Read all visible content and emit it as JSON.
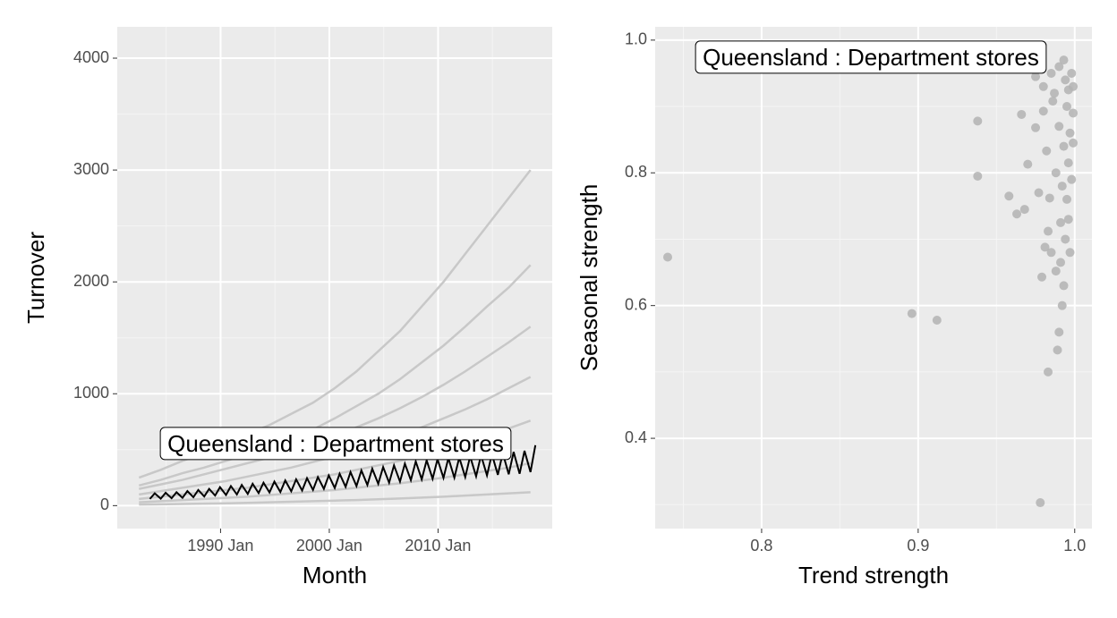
{
  "chart_data": [
    {
      "type": "line",
      "x_label": "Month",
      "y_label": "Turnover",
      "annotation": "Queensland : Department stores",
      "xlim": [
        1980.5,
        2020.5
      ],
      "xticks": [
        {
          "value": 1990,
          "label": "1990 Jan"
        },
        {
          "value": 2000,
          "label": "2000 Jan"
        },
        {
          "value": 2010,
          "label": "2010 Jan"
        }
      ],
      "ylim": [
        -205,
        4280
      ],
      "yticks": [
        0,
        1000,
        2000,
        3000,
        4000
      ],
      "grid": true,
      "series": [
        {
          "color": "#c8c8c8",
          "x": [
            1982.5,
            1984.5,
            1986.5,
            1988.5,
            1990.5,
            1992.5,
            1994.5,
            1996.5,
            1998.5,
            2000.5,
            2002.5,
            2004.5,
            2006.5,
            2008.5,
            2010.5,
            2012.5,
            2014.5,
            2016.5,
            2018.5
          ],
          "values": [
            250,
            320,
            400,
            470,
            560,
            640,
            720,
            820,
            920,
            1050,
            1200,
            1380,
            1560,
            1780,
            2000,
            2250,
            2500,
            2750,
            3000
          ]
        },
        {
          "color": "#c8c8c8",
          "x": [
            1982.5,
            1984.5,
            1986.5,
            1988.5,
            1990.5,
            1992.5,
            1994.5,
            1996.5,
            1998.5,
            2000.5,
            2002.5,
            2004.5,
            2006.5,
            2008.5,
            2010.5,
            2012.5,
            2014.5,
            2016.5,
            2018.5
          ],
          "values": [
            180,
            230,
            290,
            340,
            400,
            460,
            520,
            600,
            680,
            780,
            890,
            1000,
            1130,
            1280,
            1430,
            1600,
            1780,
            1950,
            2150
          ]
        },
        {
          "color": "#c8c8c8",
          "x": [
            1982.5,
            1984.5,
            1986.5,
            1988.5,
            1990.5,
            1992.5,
            1994.5,
            1996.5,
            1998.5,
            2000.5,
            2002.5,
            2004.5,
            2006.5,
            2008.5,
            2010.5,
            2012.5,
            2014.5,
            2016.5,
            2018.5
          ],
          "values": [
            150,
            190,
            230,
            280,
            330,
            380,
            430,
            490,
            550,
            620,
            700,
            780,
            870,
            970,
            1080,
            1200,
            1330,
            1460,
            1600
          ]
        },
        {
          "color": "#c8c8c8",
          "x": [
            1982.5,
            1984.5,
            1986.5,
            1988.5,
            1990.5,
            1992.5,
            1994.5,
            1996.5,
            1998.5,
            2000.5,
            2002.5,
            2004.5,
            2006.5,
            2008.5,
            2010.5,
            2012.5,
            2014.5,
            2016.5,
            2018.5
          ],
          "values": [
            100,
            130,
            160,
            190,
            220,
            260,
            300,
            340,
            390,
            440,
            500,
            560,
            630,
            700,
            780,
            860,
            950,
            1050,
            1150
          ]
        },
        {
          "color": "#c8c8c8",
          "x": [
            1982.5,
            1984.5,
            1986.5,
            1988.5,
            1990.5,
            1992.5,
            1994.5,
            1996.5,
            1998.5,
            2000.5,
            2002.5,
            2004.5,
            2006.5,
            2008.5,
            2010.5,
            2012.5,
            2014.5,
            2016.5,
            2018.5
          ],
          "values": [
            60,
            80,
            100,
            120,
            140,
            160,
            190,
            220,
            250,
            280,
            320,
            360,
            400,
            450,
            500,
            560,
            620,
            690,
            760
          ]
        },
        {
          "color": "#c8c8c8",
          "x": [
            1982.5,
            1984.5,
            1986.5,
            1988.5,
            1990.5,
            1992.5,
            1994.5,
            1996.5,
            1998.5,
            2000.5,
            2002.5,
            2004.5,
            2006.5,
            2008.5,
            2010.5,
            2012.5,
            2014.5,
            2016.5,
            2018.5
          ],
          "values": [
            30,
            40,
            50,
            60,
            70,
            80,
            95,
            110,
            125,
            140,
            160,
            180,
            200,
            225,
            250,
            280,
            310,
            340,
            380
          ]
        },
        {
          "color": "#c8c8c8",
          "x": [
            1982.5,
            1984.5,
            1986.5,
            1988.5,
            1990.5,
            1992.5,
            1994.5,
            1996.5,
            1998.5,
            2000.5,
            2002.5,
            2004.5,
            2006.5,
            2008.5,
            2010.5,
            2012.5,
            2014.5,
            2016.5,
            2018.5
          ],
          "values": [
            10,
            12,
            15,
            18,
            21,
            25,
            30,
            35,
            40,
            45,
            50,
            57,
            64,
            72,
            80,
            90,
            100,
            110,
            120
          ]
        },
        {
          "color": "#000000",
          "x": [
            1983.5,
            1983.95,
            1984.5,
            1984.95,
            1985.5,
            1985.95,
            1986.5,
            1986.95,
            1987.5,
            1987.95,
            1988.5,
            1988.95,
            1989.5,
            1989.95,
            1990.5,
            1990.95,
            1991.5,
            1991.95,
            1992.5,
            1992.95,
            1993.5,
            1993.95,
            1994.5,
            1994.95,
            1995.5,
            1995.95,
            1996.5,
            1996.95,
            1997.5,
            1997.95,
            1998.5,
            1998.95,
            1999.5,
            1999.95,
            2000.5,
            2000.95,
            2001.5,
            2001.95,
            2002.5,
            2002.95,
            2003.5,
            2003.95,
            2004.5,
            2004.95,
            2005.5,
            2005.95,
            2006.5,
            2006.95,
            2007.5,
            2007.95,
            2008.5,
            2008.95,
            2009.5,
            2009.95,
            2010.5,
            2010.95,
            2011.5,
            2011.95,
            2012.5,
            2012.95,
            2013.5,
            2013.95,
            2014.5,
            2014.95,
            2015.5,
            2015.95,
            2016.5,
            2016.95,
            2017.5,
            2017.95,
            2018.5,
            2018.95
          ],
          "values": [
            60,
            110,
            62,
            115,
            66,
            120,
            70,
            130,
            75,
            140,
            82,
            150,
            90,
            165,
            95,
            175,
            100,
            185,
            105,
            195,
            112,
            205,
            118,
            215,
            122,
            225,
            128,
            235,
            135,
            245,
            140,
            255,
            150,
            270,
            158,
            285,
            168,
            300,
            175,
            315,
            185,
            330,
            195,
            345,
            205,
            360,
            215,
            375,
            228,
            395,
            235,
            405,
            240,
            415,
            248,
            425,
            250,
            430,
            255,
            440,
            262,
            450,
            270,
            460,
            275,
            470,
            280,
            480,
            285,
            490,
            300,
            540
          ]
        }
      ]
    },
    {
      "type": "scatter",
      "x_label": "Trend strength",
      "y_label": "Seasonal strength",
      "annotation": "Queensland : Department stores",
      "xlim": [
        0.732,
        1.011
      ],
      "xticks": [
        {
          "value": 0.8,
          "label": "0.8"
        },
        {
          "value": 0.9,
          "label": "0.9"
        },
        {
          "value": 1.0,
          "label": "1.0"
        }
      ],
      "ylim": [
        0.264,
        1.02
      ],
      "yticks": [
        {
          "value": 0.4,
          "label": "0.4"
        },
        {
          "value": 0.6,
          "label": "0.6"
        },
        {
          "value": 0.8,
          "label": "0.8"
        },
        {
          "value": 1.0,
          "label": "1.0"
        }
      ],
      "grid": true,
      "color": "#b3b3b3",
      "x": [
        0.74,
        0.896,
        0.912,
        0.938,
        0.938,
        0.958,
        0.963,
        0.966,
        0.968,
        0.97,
        0.975,
        0.977,
        0.978,
        0.979,
        0.98,
        0.981,
        0.982,
        0.983,
        0.983,
        0.984,
        0.985,
        0.986,
        0.987,
        0.988,
        0.988,
        0.989,
        0.99,
        0.99,
        0.991,
        0.991,
        0.992,
        0.992,
        0.993,
        0.993,
        0.994,
        0.994,
        0.995,
        0.995,
        0.996,
        0.996,
        0.997,
        0.997,
        0.998,
        0.998,
        0.999,
        0.999,
        0.985,
        0.99,
        0.993,
        0.996,
        0.999,
        0.98,
        0.975
      ],
      "values": [
        0.673,
        0.588,
        0.578,
        0.878,
        0.795,
        0.765,
        0.738,
        0.888,
        0.745,
        0.813,
        0.868,
        0.77,
        0.303,
        0.643,
        0.893,
        0.688,
        0.833,
        0.712,
        0.5,
        0.762,
        0.68,
        0.908,
        0.92,
        0.652,
        0.8,
        0.533,
        0.56,
        0.87,
        0.725,
        0.665,
        0.6,
        0.78,
        0.63,
        0.84,
        0.7,
        0.94,
        0.76,
        0.9,
        0.73,
        0.815,
        0.68,
        0.86,
        0.95,
        0.79,
        0.89,
        0.845,
        0.95,
        0.96,
        0.97,
        0.925,
        0.93,
        0.93,
        0.945
      ]
    }
  ]
}
